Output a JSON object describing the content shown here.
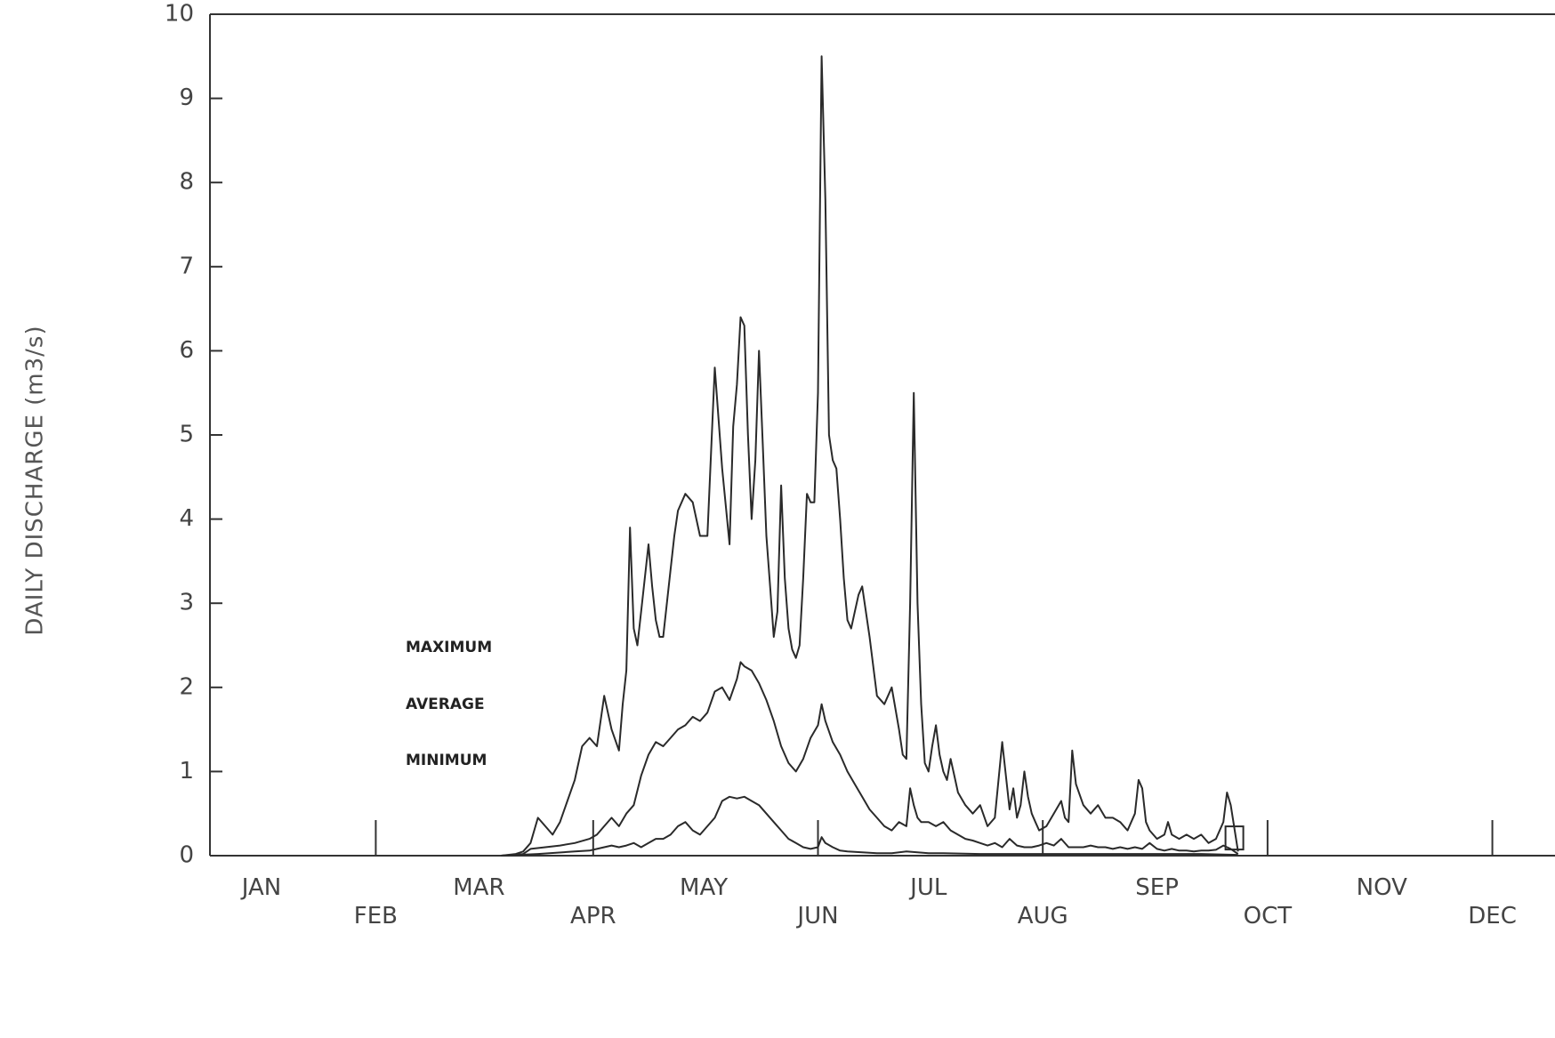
{
  "chart_data": {
    "type": "line",
    "title": "",
    "xlabel": "",
    "ylabel": "DAILY DISCHARGE (m3/s)",
    "ylim": [
      0,
      10
    ],
    "yticks": [
      "0",
      "1",
      "2",
      "3",
      "4",
      "5",
      "6",
      "7",
      "8",
      "9",
      "10"
    ],
    "xticks": [
      {
        "label": "JAN",
        "day": 15,
        "row": "upper"
      },
      {
        "label": "FEB",
        "day": 46,
        "row": "lower"
      },
      {
        "label": "MAR",
        "day": 74,
        "row": "upper"
      },
      {
        "label": "APR",
        "day": 105,
        "row": "lower"
      },
      {
        "label": "MAY",
        "day": 135,
        "row": "upper"
      },
      {
        "label": "JUN",
        "day": 166,
        "row": "lower"
      },
      {
        "label": "JUL",
        "day": 196,
        "row": "upper"
      },
      {
        "label": "AUG",
        "day": 227,
        "row": "lower"
      },
      {
        "label": "SEP",
        "day": 258,
        "row": "upper"
      },
      {
        "label": "OCT",
        "day": 288,
        "row": "lower"
      },
      {
        "label": "NOV",
        "day": 319,
        "row": "upper"
      },
      {
        "label": "DEC",
        "day": 349,
        "row": "lower"
      }
    ],
    "grid": false,
    "legend": {
      "placement": "left-center",
      "entries": [
        "MAXIMUM",
        "AVERAGE",
        "MINIMUM"
      ]
    },
    "series": [
      {
        "name": "MAXIMUM",
        "x": [
          80,
          84,
          86,
          88,
          90,
          92,
          94,
          96,
          98,
          100,
          102,
          104,
          106,
          108,
          110,
          112,
          113,
          114,
          115,
          116,
          117,
          118,
          120,
          121,
          122,
          123,
          124,
          126,
          127,
          128,
          130,
          132,
          134,
          136,
          138,
          140,
          142,
          143,
          144,
          145,
          146,
          147,
          148,
          149,
          150,
          151,
          152,
          153,
          154,
          155,
          156,
          157,
          158,
          159,
          160,
          161,
          162,
          163,
          164,
          165,
          166,
          167,
          168,
          169,
          170,
          171,
          172,
          173,
          174,
          175,
          176,
          177,
          178,
          180,
          182,
          184,
          186,
          188,
          189,
          190,
          191,
          192,
          193,
          194,
          195,
          196,
          197,
          198,
          199,
          200,
          201,
          202,
          203,
          204,
          206,
          208,
          210,
          212,
          214,
          216,
          218,
          219,
          220,
          221,
          222,
          223,
          224,
          225,
          226,
          228,
          230,
          232,
          233,
          234,
          235,
          236,
          238,
          240,
          242,
          244,
          246,
          248,
          250,
          252,
          253,
          254,
          255,
          256,
          258,
          260,
          261,
          262,
          264,
          266,
          268,
          270,
          272,
          274,
          276,
          277,
          278,
          280
        ],
        "y": [
          0,
          0.02,
          0.05,
          0.15,
          0.45,
          0.35,
          0.25,
          0.4,
          0.65,
          0.9,
          1.3,
          1.4,
          1.3,
          1.9,
          1.5,
          1.25,
          1.8,
          2.2,
          3.9,
          2.7,
          2.5,
          2.9,
          3.7,
          3.2,
          2.8,
          2.6,
          2.6,
          3.4,
          3.8,
          4.1,
          4.3,
          4.2,
          3.8,
          3.8,
          5.8,
          4.6,
          3.7,
          5.1,
          5.6,
          6.4,
          6.3,
          5.0,
          4.0,
          4.7,
          6.0,
          4.9,
          3.8,
          3.2,
          2.6,
          2.9,
          4.4,
          3.3,
          2.7,
          2.45,
          2.35,
          2.5,
          3.3,
          4.3,
          4.2,
          4.2,
          5.5,
          9.5,
          7.8,
          5.0,
          4.7,
          4.6,
          4.0,
          3.3,
          2.8,
          2.7,
          2.9,
          3.1,
          3.2,
          2.6,
          1.9,
          1.8,
          2.0,
          1.5,
          1.2,
          1.15,
          3.0,
          5.5,
          3.0,
          1.8,
          1.1,
          1.0,
          1.3,
          1.55,
          1.2,
          1.0,
          0.9,
          1.15,
          0.95,
          0.75,
          0.6,
          0.5,
          0.6,
          0.35,
          0.45,
          1.35,
          0.55,
          0.8,
          0.45,
          0.6,
          1.0,
          0.7,
          0.5,
          0.4,
          0.3,
          0.35,
          0.5,
          0.65,
          0.45,
          0.4,
          1.25,
          0.85,
          0.6,
          0.5,
          0.6,
          0.45,
          0.45,
          0.4,
          0.3,
          0.5,
          0.9,
          0.8,
          0.4,
          0.3,
          0.2,
          0.25,
          0.4,
          0.25,
          0.2,
          0.25,
          0.2,
          0.25,
          0.15,
          0.2,
          0.4,
          0.75,
          0.6,
          0.05
        ]
      },
      {
        "name": "AVERAGE",
        "x": [
          80,
          84,
          86,
          88,
          92,
          96,
          100,
          104,
          106,
          108,
          110,
          112,
          114,
          116,
          118,
          120,
          122,
          124,
          126,
          128,
          130,
          132,
          134,
          136,
          138,
          140,
          142,
          144,
          145,
          146,
          148,
          150,
          152,
          154,
          156,
          158,
          160,
          162,
          164,
          166,
          167,
          168,
          170,
          172,
          174,
          176,
          178,
          180,
          182,
          184,
          186,
          188,
          190,
          191,
          192,
          193,
          194,
          196,
          198,
          200,
          202,
          204,
          206,
          208,
          210,
          212,
          214,
          216,
          218,
          220,
          222,
          224,
          226,
          228,
          230,
          232,
          234,
          236,
          238,
          240,
          242,
          244,
          246,
          248,
          250,
          252,
          254,
          256,
          258,
          260,
          262,
          264,
          266,
          268,
          270,
          272,
          274,
          276,
          278,
          280
        ],
        "y": [
          0,
          0.01,
          0.02,
          0.08,
          0.1,
          0.12,
          0.15,
          0.2,
          0.25,
          0.35,
          0.45,
          0.35,
          0.5,
          0.6,
          0.95,
          1.2,
          1.35,
          1.3,
          1.4,
          1.5,
          1.55,
          1.65,
          1.6,
          1.7,
          1.95,
          2.0,
          1.85,
          2.1,
          2.3,
          2.25,
          2.2,
          2.05,
          1.85,
          1.6,
          1.3,
          1.1,
          1.0,
          1.15,
          1.4,
          1.55,
          1.8,
          1.6,
          1.35,
          1.2,
          1.0,
          0.85,
          0.7,
          0.55,
          0.45,
          0.35,
          0.3,
          0.4,
          0.35,
          0.8,
          0.6,
          0.45,
          0.4,
          0.4,
          0.35,
          0.4,
          0.3,
          0.25,
          0.2,
          0.18,
          0.15,
          0.12,
          0.15,
          0.1,
          0.2,
          0.12,
          0.1,
          0.1,
          0.12,
          0.15,
          0.12,
          0.2,
          0.1,
          0.1,
          0.1,
          0.12,
          0.1,
          0.1,
          0.08,
          0.1,
          0.08,
          0.1,
          0.08,
          0.15,
          0.08,
          0.06,
          0.08,
          0.06,
          0.06,
          0.05,
          0.06,
          0.06,
          0.07,
          0.12,
          0.08,
          0.02
        ]
      },
      {
        "name": "MINIMUM",
        "x": [
          80,
          90,
          100,
          104,
          106,
          108,
          110,
          112,
          114,
          116,
          118,
          120,
          122,
          124,
          126,
          128,
          130,
          132,
          134,
          136,
          138,
          140,
          142,
          144,
          146,
          148,
          150,
          152,
          154,
          156,
          158,
          160,
          162,
          164,
          166,
          167,
          168,
          170,
          172,
          174,
          178,
          182,
          186,
          190,
          196,
          200,
          210,
          220,
          230,
          240,
          250,
          260,
          270,
          280
        ],
        "y": [
          0,
          0.02,
          0.05,
          0.06,
          0.08,
          0.1,
          0.12,
          0.1,
          0.12,
          0.15,
          0.1,
          0.15,
          0.2,
          0.2,
          0.25,
          0.35,
          0.4,
          0.3,
          0.25,
          0.35,
          0.45,
          0.65,
          0.7,
          0.68,
          0.7,
          0.65,
          0.6,
          0.5,
          0.4,
          0.3,
          0.2,
          0.15,
          0.1,
          0.08,
          0.1,
          0.22,
          0.15,
          0.1,
          0.06,
          0.05,
          0.04,
          0.03,
          0.03,
          0.05,
          0.03,
          0.03,
          0.02,
          0.02,
          0.02,
          0.02,
          0.02,
          0.02,
          0.02,
          0.01
        ]
      }
    ],
    "marker": {
      "name": "end-of-record-box",
      "x": 279,
      "y": 0.2
    }
  }
}
